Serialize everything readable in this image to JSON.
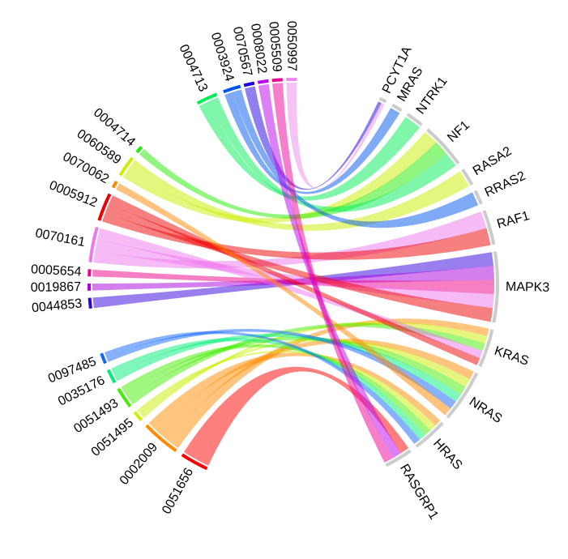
{
  "chart_data": {
    "type": "chord",
    "gene_sectors": [
      {
        "id": "PCYT1A",
        "color": "#cccccc"
      },
      {
        "id": "MRAS",
        "color": "#cccccc"
      },
      {
        "id": "NTRK1",
        "color": "#cccccc"
      },
      {
        "id": "NF1",
        "color": "#cccccc"
      },
      {
        "id": "RASA2",
        "color": "#cccccc"
      },
      {
        "id": "RRAS2",
        "color": "#cccccc"
      },
      {
        "id": "RAF1",
        "color": "#cccccc"
      },
      {
        "id": "MAPK3",
        "color": "#cccccc"
      },
      {
        "id": "KRAS",
        "color": "#cccccc"
      },
      {
        "id": "NRAS",
        "color": "#cccccc"
      },
      {
        "id": "HRAS",
        "color": "#cccccc"
      },
      {
        "id": "RASGRP1",
        "color": "#cccccc"
      }
    ],
    "term_sectors": [
      {
        "id": "0051656",
        "color": "#ff0000"
      },
      {
        "id": "0002009",
        "color": "#ff8c00"
      },
      {
        "id": "0051495",
        "color": "#ccee00"
      },
      {
        "id": "0051493",
        "color": "#44ee00"
      },
      {
        "id": "0035176",
        "color": "#00ee77"
      },
      {
        "id": "0097485",
        "color": "#1166ff"
      },
      {
        "id": "0044853",
        "color": "#3300dd"
      },
      {
        "id": "0019867",
        "color": "#aa00dd"
      },
      {
        "id": "0005654",
        "color": "#ee0088"
      },
      {
        "id": "0070161",
        "color": "#ee77ee"
      },
      {
        "id": "0005912",
        "color": "#ee0000"
      },
      {
        "id": "0070062",
        "color": "#ff8800"
      },
      {
        "id": "0060589",
        "color": "#ccee00"
      },
      {
        "id": "0004714",
        "color": "#22ee00"
      },
      {
        "id": "0004713",
        "color": "#00ee55"
      },
      {
        "id": "0003924",
        "color": "#0055ee"
      },
      {
        "id": "0070567",
        "color": "#2200dd"
      },
      {
        "id": "0008022",
        "color": "#bb00ee"
      },
      {
        "id": "0005509",
        "color": "#ee0099"
      },
      {
        "id": "0050997",
        "color": "#ee88ee"
      }
    ],
    "links": [
      {
        "term": "0051656",
        "gene": "RASGRP1"
      },
      {
        "term": "0002009",
        "gene": "KRAS"
      },
      {
        "term": "0002009",
        "gene": "NRAS"
      },
      {
        "term": "0002009",
        "gene": "HRAS"
      },
      {
        "term": "0051495",
        "gene": "KRAS"
      },
      {
        "term": "0051495",
        "gene": "NRAS"
      },
      {
        "term": "0051495",
        "gene": "HRAS"
      },
      {
        "term": "0051493",
        "gene": "KRAS"
      },
      {
        "term": "0051493",
        "gene": "NRAS"
      },
      {
        "term": "0051493",
        "gene": "HRAS"
      },
      {
        "term": "0035176",
        "gene": "NRAS"
      },
      {
        "term": "0035176",
        "gene": "HRAS"
      },
      {
        "term": "0097485",
        "gene": "NRAS"
      },
      {
        "term": "0097485",
        "gene": "HRAS"
      },
      {
        "term": "0044853",
        "gene": "MAPK3"
      },
      {
        "term": "0019867",
        "gene": "MAPK3"
      },
      {
        "term": "0005654",
        "gene": "MAPK3"
      },
      {
        "term": "0070161",
        "gene": "RAF1"
      },
      {
        "term": "0070161",
        "gene": "MAPK3"
      },
      {
        "term": "0070161",
        "gene": "KRAS"
      },
      {
        "term": "0005912",
        "gene": "RAF1"
      },
      {
        "term": "0005912",
        "gene": "MAPK3"
      },
      {
        "term": "0005912",
        "gene": "KRAS"
      },
      {
        "term": "0070062",
        "gene": "NRAS"
      },
      {
        "term": "0060589",
        "gene": "NF1"
      },
      {
        "term": "0060589",
        "gene": "RASA2"
      },
      {
        "term": "0004714",
        "gene": "NF1"
      },
      {
        "term": "0004713",
        "gene": "NTRK1"
      },
      {
        "term": "0004713",
        "gene": "NF1"
      },
      {
        "term": "0003924",
        "gene": "MRAS"
      },
      {
        "term": "0003924",
        "gene": "RRAS2"
      },
      {
        "term": "0070567",
        "gene": "PCYT1A"
      },
      {
        "term": "0008022",
        "gene": "RASGRP1"
      },
      {
        "term": "0005509",
        "gene": "RASGRP1"
      },
      {
        "term": "0050997",
        "gene": "PCYT1A"
      }
    ]
  }
}
